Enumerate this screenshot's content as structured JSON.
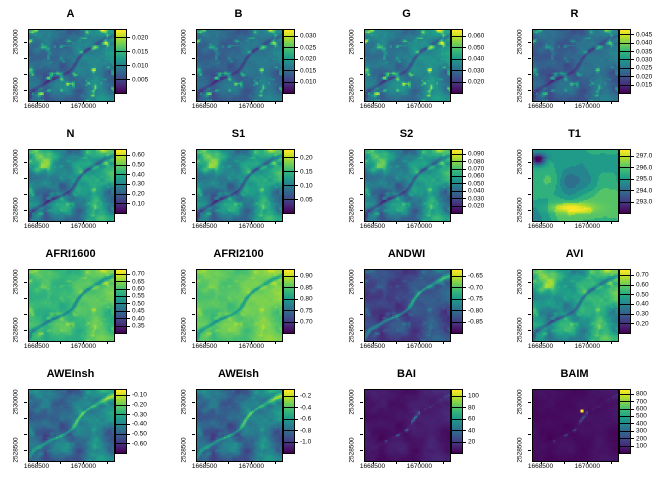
{
  "figure": {
    "background": "#ffffff",
    "text_color": "#000000"
  },
  "colors": {
    "viridis": [
      "#440154",
      "#482878",
      "#3e4a89",
      "#31688e",
      "#26828e",
      "#1f9e89",
      "#35b779",
      "#6ece58",
      "#b5de2b",
      "#fde725"
    ]
  },
  "chart_data": {
    "type": "heatmap",
    "layout": "4x4-grid",
    "colormap": "viridis",
    "grid": false,
    "x_tick_labels": [
      "1668500",
      "1670000"
    ],
    "y_tick_labels": [
      "2530000",
      "2528500"
    ],
    "panels": [
      {
        "title": "A",
        "cb_labels": [
          "0.020",
          "0.015",
          "0.010",
          "0.005"
        ],
        "cb_values": [
          0.02,
          0.015,
          0.01,
          0.005
        ],
        "cb_hi": 0.0225,
        "cb_lo": 0.0,
        "tone": {
          "base": 0.4,
          "amp": 0.22,
          "river": -0.28,
          "spots": 0.55,
          "blob": 0.0
        }
      },
      {
        "title": "B",
        "cb_labels": [
          "0.030",
          "0.025",
          "0.020",
          "0.015",
          "0.010"
        ],
        "cb_values": [
          0.03,
          0.025,
          0.02,
          0.015,
          0.01
        ],
        "cb_hi": 0.0325,
        "cb_lo": 0.005,
        "tone": {
          "base": 0.36,
          "amp": 0.18,
          "river": -0.25,
          "spots": 0.5,
          "blob": 0.0
        }
      },
      {
        "title": "G",
        "cb_labels": [
          "0.060",
          "0.050",
          "0.040",
          "0.030",
          "0.020"
        ],
        "cb_values": [
          0.06,
          0.05,
          0.04,
          0.03,
          0.02
        ],
        "cb_hi": 0.065,
        "cb_lo": 0.01,
        "tone": {
          "base": 0.44,
          "amp": 0.22,
          "river": -0.28,
          "spots": 0.55,
          "blob": 0.0
        }
      },
      {
        "title": "R",
        "cb_labels": [
          "0.045",
          "0.040",
          "0.035",
          "0.030",
          "0.025",
          "0.020",
          "0.015"
        ],
        "cb_values": [
          0.045,
          0.04,
          0.035,
          0.03,
          0.025,
          0.02,
          0.015
        ],
        "cb_hi": 0.0475,
        "cb_lo": 0.01,
        "tone": {
          "base": 0.34,
          "amp": 0.18,
          "river": -0.22,
          "spots": 0.4,
          "blob": 0.0
        }
      },
      {
        "title": "N",
        "cb_labels": [
          "0.60",
          "0.50",
          "0.40",
          "0.30",
          "0.20",
          "0.10"
        ],
        "cb_values": [
          0.6,
          0.5,
          0.4,
          0.3,
          0.2,
          0.1
        ],
        "cb_hi": 0.65,
        "cb_lo": 0.0,
        "tone": {
          "base": 0.5,
          "amp": 0.34,
          "river": -0.35,
          "spots": 0.2,
          "blob": 0.3
        }
      },
      {
        "title": "S1",
        "cb_labels": [
          "0.20",
          "0.15",
          "0.10",
          "0.05"
        ],
        "cb_values": [
          0.2,
          0.15,
          0.1,
          0.05
        ],
        "cb_hi": 0.225,
        "cb_lo": 0.0,
        "tone": {
          "base": 0.5,
          "amp": 0.34,
          "river": -0.35,
          "spots": 0.2,
          "blob": 0.3
        }
      },
      {
        "title": "S2",
        "cb_labels": [
          "0.090",
          "0.080",
          "0.070",
          "0.060",
          "0.050",
          "0.040",
          "0.030",
          "0.020"
        ],
        "cb_values": [
          0.09,
          0.08,
          0.07,
          0.06,
          0.05,
          0.04,
          0.03,
          0.02
        ],
        "cb_hi": 0.095,
        "cb_lo": 0.01,
        "tone": {
          "base": 0.48,
          "amp": 0.34,
          "river": -0.32,
          "spots": 0.2,
          "blob": 0.25
        }
      },
      {
        "title": "T1",
        "cb_labels": [
          "297.0",
          "296.0",
          "295.0",
          "294.0",
          "293.0"
        ],
        "cb_values": [
          297.0,
          296.0,
          295.0,
          294.0,
          293.0
        ],
        "cb_hi": 297.5,
        "cb_lo": 292.0,
        "tone": {
          "base": 0.62,
          "amp": 0.3,
          "river": 0.0,
          "spots": 0.0,
          "blob": 0.0,
          "posterize": true
        }
      },
      {
        "title": "AFRI1600",
        "cb_labels": [
          "0.70",
          "0.65",
          "0.60",
          "0.55",
          "0.50",
          "0.45",
          "0.40",
          "0.35"
        ],
        "cb_values": [
          0.7,
          0.65,
          0.6,
          0.55,
          0.5,
          0.45,
          0.4,
          0.35
        ],
        "cb_hi": 0.725,
        "cb_lo": 0.3,
        "tone": {
          "base": 0.7,
          "amp": 0.16,
          "river": -0.35,
          "spots": 0.15,
          "blob": 0.0
        }
      },
      {
        "title": "AFRI2100",
        "cb_labels": [
          "0.90",
          "0.85",
          "0.80",
          "0.75",
          "0.70"
        ],
        "cb_values": [
          0.9,
          0.85,
          0.8,
          0.75,
          0.7
        ],
        "cb_hi": 0.925,
        "cb_lo": 0.65,
        "tone": {
          "base": 0.76,
          "amp": 0.13,
          "river": -0.32,
          "spots": 0.1,
          "blob": 0.0
        }
      },
      {
        "title": "ANDWI",
        "cb_labels": [
          "-0.65",
          "-0.70",
          "-0.75",
          "-0.80",
          "-0.85"
        ],
        "cb_values": [
          -0.65,
          -0.7,
          -0.75,
          -0.8,
          -0.85
        ],
        "cb_hi": -0.625,
        "cb_lo": -0.9,
        "tone": {
          "base": 0.24,
          "amp": 0.18,
          "river": 0.45,
          "spots": 0.15,
          "blob": 0.0
        }
      },
      {
        "title": "AVI",
        "cb_labels": [
          "0.70",
          "0.60",
          "0.50",
          "0.40",
          "0.30",
          "0.20"
        ],
        "cb_values": [
          0.7,
          0.6,
          0.5,
          0.4,
          0.3,
          0.2
        ],
        "cb_hi": 0.75,
        "cb_lo": 0.1,
        "tone": {
          "base": 0.58,
          "amp": 0.3,
          "river": -0.35,
          "spots": 0.15,
          "blob": 0.25
        }
      },
      {
        "title": "AWEInsh",
        "cb_labels": [
          "-0.10",
          "-0.20",
          "-0.30",
          "-0.40",
          "-0.50",
          "-0.60"
        ],
        "cb_values": [
          -0.1,
          -0.2,
          -0.3,
          -0.4,
          -0.5,
          -0.6
        ],
        "cb_hi": -0.05,
        "cb_lo": -0.7,
        "tone": {
          "base": 0.4,
          "amp": 0.28,
          "river": 0.4,
          "spots": 0.1,
          "blob": 0.0
        }
      },
      {
        "title": "AWEIsh",
        "cb_labels": [
          "-0.2",
          "-0.4",
          "-0.6",
          "-0.8",
          "-1.0"
        ],
        "cb_values": [
          -0.2,
          -0.4,
          -0.6,
          -0.8,
          -1.0
        ],
        "cb_hi": -0.1,
        "cb_lo": -1.2,
        "tone": {
          "base": 0.38,
          "amp": 0.28,
          "river": 0.42,
          "spots": 0.1,
          "blob": 0.0
        }
      },
      {
        "title": "BAI",
        "cb_labels": [
          "100",
          "80",
          "60",
          "40",
          "20"
        ],
        "cb_values": [
          100,
          80,
          60,
          40,
          20
        ],
        "cb_hi": 110,
        "cb_lo": 0,
        "tone": {
          "base": 0.07,
          "amp": 0.07,
          "river": 0.65,
          "spots": 0.0,
          "blob": 0.0,
          "sparse": true
        }
      },
      {
        "title": "BAIM",
        "cb_labels": [
          "800",
          "700",
          "600",
          "500",
          "400",
          "300",
          "200",
          "100"
        ],
        "cb_values": [
          800,
          700,
          600,
          500,
          400,
          300,
          200,
          100
        ],
        "cb_hi": 850,
        "cb_lo": 0,
        "tone": {
          "base": 0.04,
          "amp": 0.04,
          "river": 0.4,
          "spots": 0.0,
          "blob": 0.0,
          "sparse": true,
          "dot": true
        }
      }
    ]
  }
}
